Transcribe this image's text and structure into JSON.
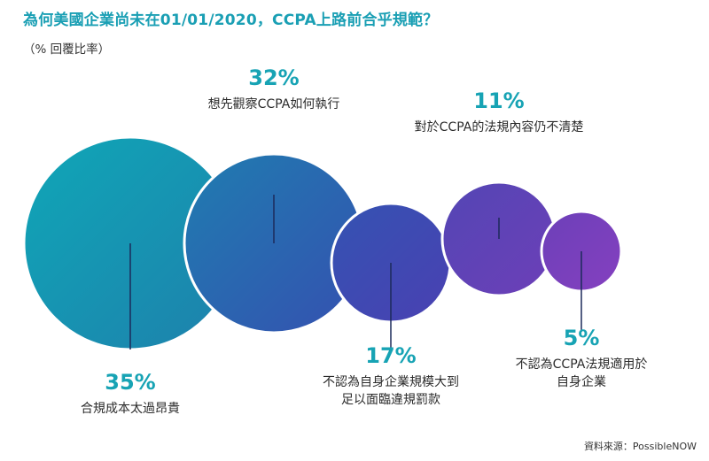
{
  "title": "為何美國企業尚未在01/01/2020，CCPA上路前合乎規範？",
  "subtitle": "（% 回覆比率）",
  "source": "資料來源：PossibleNOW",
  "chart_data": {
    "type": "bubble",
    "unit": "%",
    "items": [
      {
        "value": 35,
        "label_lines": [
          "合規成本太過昂貴"
        ],
        "color": "#1497ab"
      },
      {
        "value": 32,
        "label_lines": [
          "想先觀察CCPA如何執行"
        ],
        "color": "#2b5eae"
      },
      {
        "value": 17,
        "label_lines": [
          "不認為自身企業規模大到",
          "足以面臨違規罰款"
        ],
        "color": "#4043b0"
      },
      {
        "value": 11,
        "label_lines": [
          "對於CCPA的法規內容仍不清楚"
        ],
        "color": "#6240b4"
      },
      {
        "value": 5,
        "label_lines": [
          "不認為CCPA法規適用於",
          "自身企業"
        ],
        "color": "#7c3fbd"
      }
    ]
  }
}
